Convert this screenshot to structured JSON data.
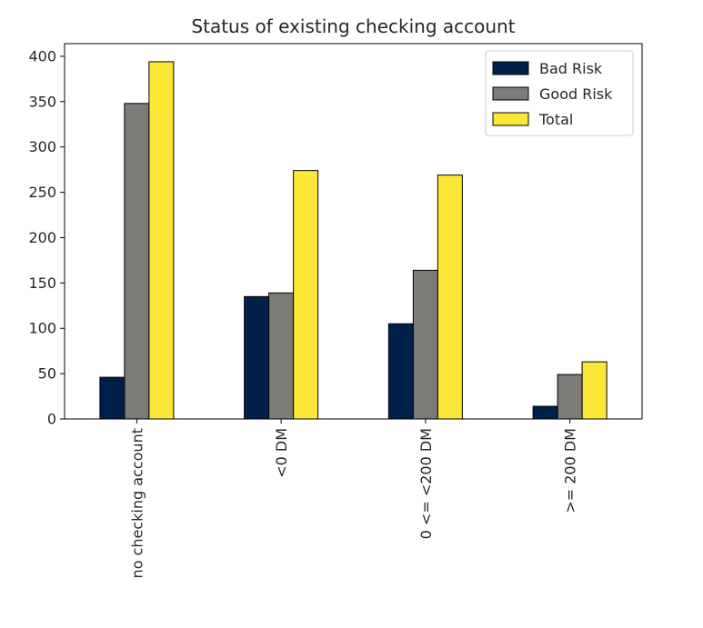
{
  "chart_data": {
    "type": "bar",
    "title": "Status of existing checking account",
    "xlabel": "",
    "ylabel": "",
    "categories": [
      "no checking account",
      "<0 DM",
      "0 <= <200 DM",
      ">= 200 DM"
    ],
    "series": [
      {
        "name": "Bad Risk",
        "color": "#00204c",
        "values": [
          46,
          135,
          105,
          14
        ]
      },
      {
        "name": "Good Risk",
        "color": "#7c7b78",
        "values": [
          348,
          139,
          164,
          49
        ]
      },
      {
        "name": "Total",
        "color": "#fde737",
        "values": [
          394,
          274,
          269,
          63
        ]
      }
    ],
    "ylim": [
      0,
      414
    ],
    "yticks": [
      0,
      50,
      100,
      150,
      200,
      250,
      300,
      350,
      400
    ],
    "grid": false,
    "legend_position": "top-right"
  }
}
